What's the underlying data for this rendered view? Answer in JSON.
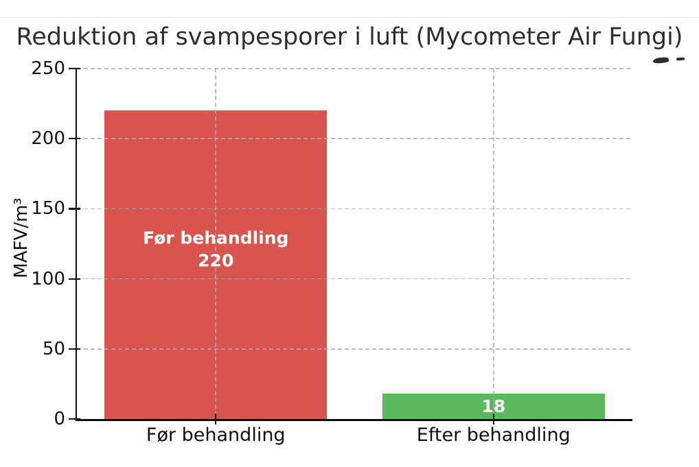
{
  "chart_data": {
    "type": "bar",
    "title": "Reduktion af svampesporer i luft (Mycometer Air Fungi)",
    "xlabel": "",
    "ylabel": "MAFV/m³",
    "categories": [
      "Før behandling",
      "Efter behandling"
    ],
    "values": [
      220,
      18
    ],
    "bar_labels": [
      "Før behandling\n220",
      "18"
    ],
    "bar_colors": [
      "#d9534f",
      "#5cb85c"
    ],
    "ylim": [
      0,
      250
    ],
    "yticks": [
      0,
      50,
      100,
      150,
      200,
      250
    ],
    "grid": {
      "visible": true,
      "style": "dashed",
      "axes": "both",
      "color": "#cdcdcd",
      "drawn_above_bars": true
    },
    "legend": "none",
    "colors": {
      "background": "#ffffff",
      "axis": "#0d0d0d",
      "text": "#111111",
      "title_text": "#2e2e2e",
      "bar_label_text": "#ffffff"
    }
  }
}
